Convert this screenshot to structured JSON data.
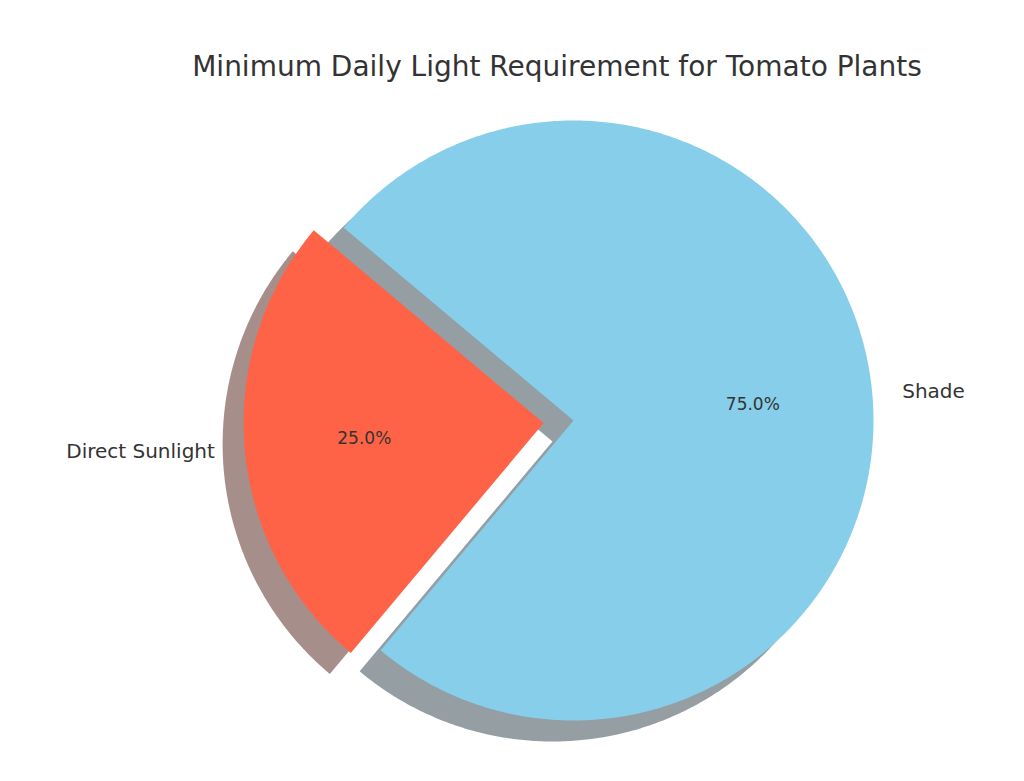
{
  "chart_data": {
    "type": "pie",
    "title": "Minimum Daily Light Requirement for Tomato Plants",
    "categories": [
      "Direct Sunlight",
      "Shade"
    ],
    "values": [
      25,
      75
    ],
    "colors": [
      "#ff6347",
      "#87ceeb"
    ],
    "data_labels": true,
    "value_labels": [
      "25.0%",
      "75.0%"
    ]
  }
}
